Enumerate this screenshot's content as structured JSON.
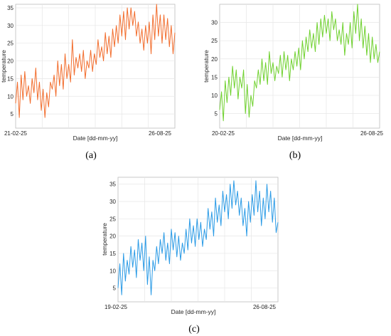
{
  "chart_data": [
    {
      "type": "line",
      "panel_label": "(a)",
      "xlabel": "Date [dd-mm-yy]",
      "ylabel": "temperature",
      "x_start": "21-02-25",
      "x_end": "26-08-25",
      "x_tick_labels": [
        "21-02-25",
        "26-08-25"
      ],
      "ylim": [
        1,
        36
      ],
      "y_ticks": [
        5,
        10,
        15,
        20,
        25,
        30,
        35
      ],
      "grid": true,
      "color": "#f26d2d",
      "series": [
        {
          "values": [
            8,
            14,
            4,
            16,
            9,
            17,
            10,
            13,
            8,
            15,
            11,
            18,
            9,
            14,
            6,
            12,
            4,
            11,
            7,
            14,
            12,
            16,
            10,
            20,
            13,
            19,
            12,
            22,
            15,
            19,
            14,
            26,
            16,
            21,
            18,
            22,
            17,
            23,
            15,
            20,
            18,
            23,
            17,
            22,
            19,
            26,
            21,
            24,
            20,
            28,
            22,
            27,
            21,
            29,
            24,
            30,
            25,
            33,
            27,
            34,
            26,
            35,
            29,
            35,
            30,
            34,
            27,
            31,
            25,
            29,
            23,
            30,
            25,
            31,
            22,
            33,
            26,
            36,
            27,
            33,
            25,
            33,
            26,
            32,
            24,
            30,
            22,
            28
          ]
        }
      ]
    },
    {
      "type": "line",
      "panel_label": "(b)",
      "xlabel": "Date [dd-mm-yy]",
      "ylabel": "temperature",
      "x_start": "20-02-25",
      "x_end": "26-08-25",
      "x_tick_labels": [
        "20-02-25",
        "26-08-25"
      ],
      "ylim": [
        1,
        35
      ],
      "y_ticks": [
        5,
        10,
        15,
        20,
        25,
        30
      ],
      "grid": true,
      "color": "#6fd12e",
      "series": [
        {
          "values": [
            6,
            11,
            3,
            14,
            8,
            15,
            10,
            18,
            12,
            17,
            9,
            15,
            12,
            17,
            5,
            13,
            4,
            10,
            7,
            14,
            12,
            17,
            13,
            20,
            14,
            19,
            13,
            22,
            16,
            19,
            14,
            18,
            16,
            21,
            15,
            22,
            17,
            21,
            14,
            20,
            17,
            22,
            18,
            23,
            17,
            25,
            20,
            26,
            22,
            28,
            23,
            27,
            22,
            30,
            24,
            31,
            26,
            32,
            27,
            31,
            25,
            33,
            28,
            31,
            25,
            28,
            24,
            30,
            21,
            27,
            24,
            30,
            23,
            33,
            27,
            35,
            25,
            31,
            23,
            29,
            21,
            27,
            19,
            26,
            20,
            24,
            19,
            22
          ]
        }
      ]
    },
    {
      "type": "line",
      "panel_label": "(c)",
      "xlabel": "Date [dd-mm-yy]",
      "ylabel": "temperature",
      "x_start": "19-02-25",
      "x_end": "26-08-25",
      "x_tick_labels": [
        "19-02-25",
        "26-08-25"
      ],
      "ylim": [
        1,
        37
      ],
      "y_ticks": [
        5,
        10,
        15,
        20,
        25,
        30,
        35
      ],
      "grid": true,
      "color": "#2b9be6",
      "series": [
        {
          "values": [
            5,
            12,
            3,
            15,
            7,
            13,
            9,
            17,
            11,
            16,
            8,
            19,
            13,
            18,
            10,
            20,
            6,
            14,
            3,
            13,
            10,
            17,
            12,
            19,
            15,
            21,
            13,
            18,
            12,
            22,
            16,
            21,
            14,
            20,
            13,
            18,
            15,
            22,
            16,
            25,
            18,
            23,
            17,
            25,
            19,
            24,
            17,
            22,
            19,
            28,
            22,
            27,
            20,
            31,
            24,
            29,
            23,
            33,
            27,
            32,
            25,
            35,
            28,
            36,
            29,
            33,
            26,
            31,
            23,
            28,
            20,
            30,
            24,
            32,
            26,
            36,
            27,
            33,
            23,
            31,
            25,
            35,
            27,
            33,
            24,
            31,
            21,
            24
          ]
        }
      ]
    }
  ]
}
